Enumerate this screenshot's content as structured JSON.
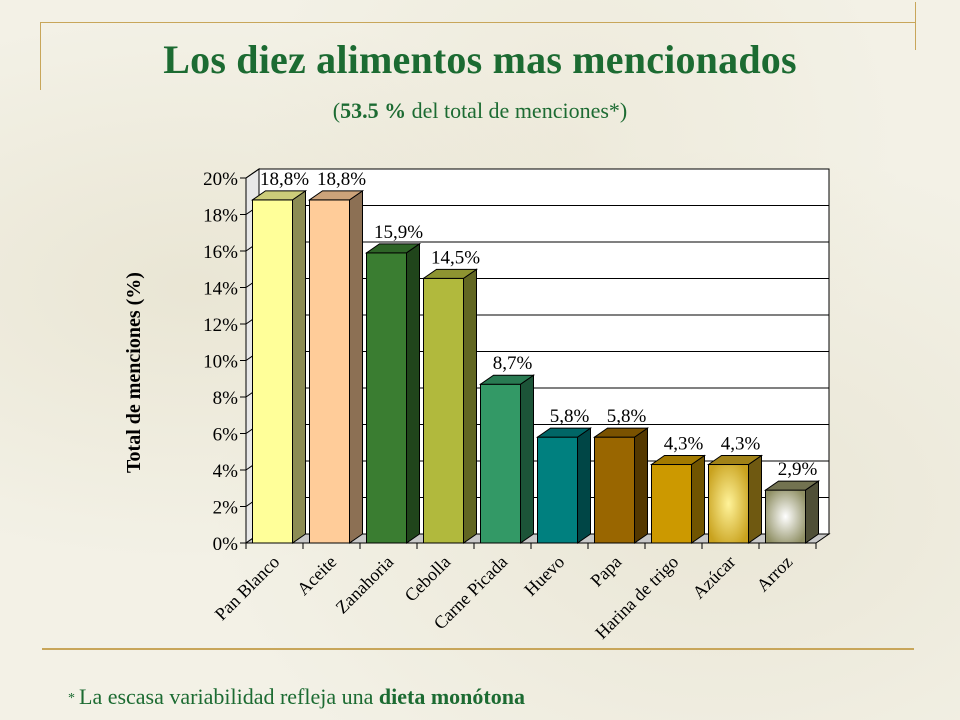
{
  "slide": {
    "title": "Los diez alimentos mas mencionados",
    "subtitle_open": "(",
    "subtitle_bold": "53.5 %",
    "subtitle_rest": " del total de menciones*)",
    "footnote_star": "*",
    "footnote_text": "La escasa variabilidad refleja una ",
    "footnote_bold": "dieta monótona"
  },
  "colors": {
    "text_green": "#1c6b32",
    "accent_gold": "#c8a65a",
    "bars": [
      "#ffff99",
      "#ffcc99",
      "#3a7d31",
      "#b1b93d",
      "#339966",
      "#00807f",
      "#996600",
      "#cc9900",
      "#c9a21e",
      "#8f8f64"
    ]
  },
  "chart_data": {
    "type": "bar",
    "categories": [
      "Pan Blanco",
      "Aceite",
      "Zanahoria",
      "Cebolla",
      "Carne Picada",
      "Huevo",
      "Papa",
      "Harina de trigo",
      "Azúcar",
      "Arroz"
    ],
    "values": [
      18.8,
      18.8,
      15.9,
      14.5,
      8.7,
      5.8,
      5.8,
      4.3,
      4.3,
      2.9
    ],
    "value_labels": [
      "18,8%",
      "18,8%",
      "15,9%",
      "14,5%",
      "8,7%",
      "5,8%",
      "5,8%",
      "4,3%",
      "4,3%",
      "2,9%"
    ],
    "ylabel": "Total de menciones (%)",
    "xlabel": "",
    "ylim": [
      0,
      20
    ],
    "yticks": [
      "0%",
      "2%",
      "4%",
      "6%",
      "8%",
      "10%",
      "12%",
      "14%",
      "16%",
      "18%",
      "20%"
    ],
    "grid": true,
    "legend": "none",
    "style": "3d"
  }
}
